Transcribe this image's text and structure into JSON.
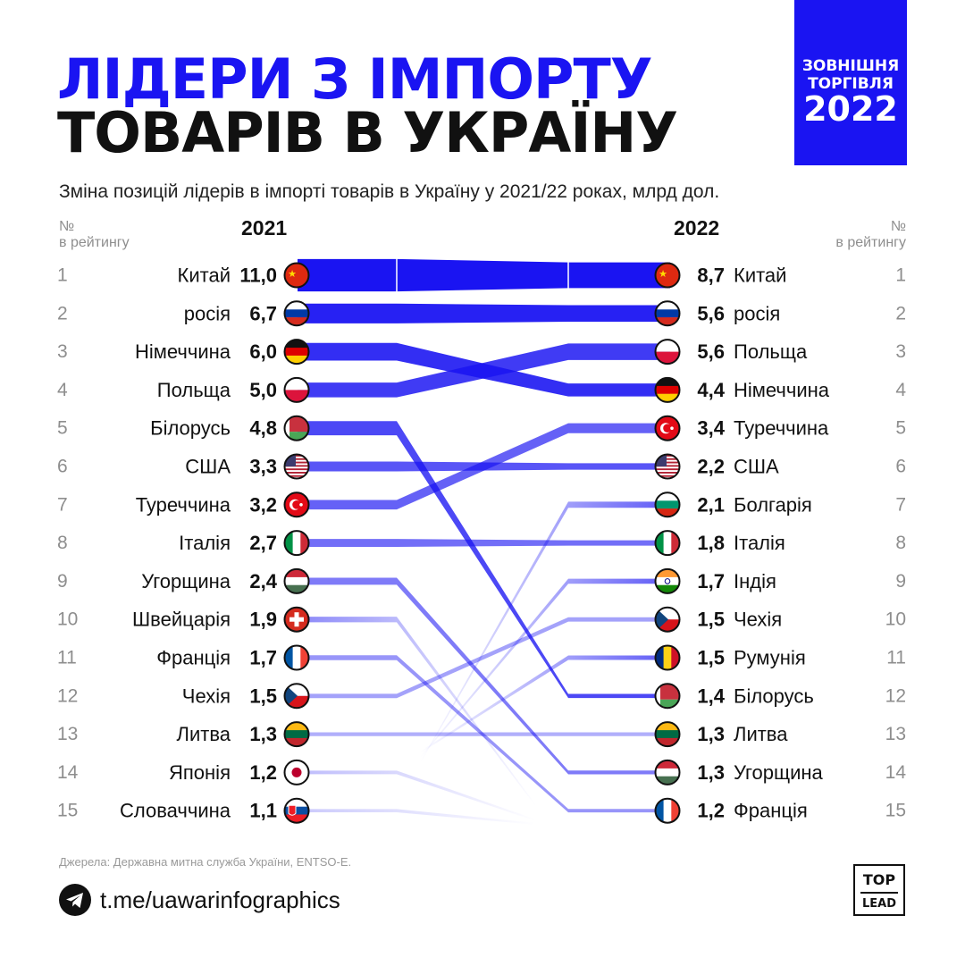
{
  "header": {
    "title_line1": "ЛІДЕРИ З ІМПОРТУ",
    "title_line2": "ТОВАРІВ В УКРАЇНУ",
    "subtitle": "Зміна позицій лідерів в імпорті товарів в Україну у 2021/22 роках, млрд дол."
  },
  "badge": {
    "line1": "ЗОВНІШНЯ",
    "line2": "ТОРГІВЛЯ",
    "line3": "2022"
  },
  "colors": {
    "accent": "#1a14f2",
    "text": "#111111",
    "muted": "#8e8e8e"
  },
  "chart_data": {
    "type": "slope",
    "left_rank_header": "№\nв рейтингу",
    "right_rank_header": "№\nв рейтингу",
    "years": [
      "2021",
      "2022"
    ],
    "ranking_2021": [
      {
        "rank": "1",
        "country": "Китай",
        "value": "11,0",
        "flag": "china-flag"
      },
      {
        "rank": "2",
        "country": "росія",
        "value": "6,7",
        "flag": "russia-flag"
      },
      {
        "rank": "3",
        "country": "Німеччина",
        "value": "6,0",
        "flag": "germany-flag"
      },
      {
        "rank": "4",
        "country": "Польща",
        "value": "5,0",
        "flag": "poland-flag"
      },
      {
        "rank": "5",
        "country": "Білорусь",
        "value": "4,8",
        "flag": "belarus-flag"
      },
      {
        "rank": "6",
        "country": "США",
        "value": "3,3",
        "flag": "usa-flag"
      },
      {
        "rank": "7",
        "country": "Туреччина",
        "value": "3,2",
        "flag": "turkey-flag"
      },
      {
        "rank": "8",
        "country": "Італія",
        "value": "2,7",
        "flag": "italy-flag"
      },
      {
        "rank": "9",
        "country": "Угорщина",
        "value": "2,4",
        "flag": "hungary-flag"
      },
      {
        "rank": "10",
        "country": "Швейцарія",
        "value": "1,9",
        "flag": "switzerland-flag"
      },
      {
        "rank": "11",
        "country": "Франція",
        "value": "1,7",
        "flag": "france-flag"
      },
      {
        "rank": "12",
        "country": "Чехія",
        "value": "1,5",
        "flag": "czechia-flag"
      },
      {
        "rank": "13",
        "country": "Литва",
        "value": "1,3",
        "flag": "lithuania-flag"
      },
      {
        "rank": "14",
        "country": "Японія",
        "value": "1,2",
        "flag": "japan-flag"
      },
      {
        "rank": "15",
        "country": "Словаччина",
        "value": "1,1",
        "flag": "slovakia-flag"
      }
    ],
    "ranking_2022": [
      {
        "rank": "1",
        "country": "Китай",
        "value": "8,7",
        "flag": "china-flag"
      },
      {
        "rank": "2",
        "country": "росія",
        "value": "5,6",
        "flag": "russia-flag"
      },
      {
        "rank": "3",
        "country": "Польща",
        "value": "5,6",
        "flag": "poland-flag"
      },
      {
        "rank": "4",
        "country": "Німеччина",
        "value": "4,4",
        "flag": "germany-flag"
      },
      {
        "rank": "5",
        "country": "Туреччина",
        "value": "3,4",
        "flag": "turkey-flag"
      },
      {
        "rank": "6",
        "country": "США",
        "value": "2,2",
        "flag": "usa-flag"
      },
      {
        "rank": "7",
        "country": "Болгарія",
        "value": "2,1",
        "flag": "bulgaria-flag"
      },
      {
        "rank": "8",
        "country": "Італія",
        "value": "1,8",
        "flag": "italy-flag"
      },
      {
        "rank": "9",
        "country": "Індія",
        "value": "1,7",
        "flag": "india-flag"
      },
      {
        "rank": "10",
        "country": "Чехія",
        "value": "1,5",
        "flag": "czechia-flag"
      },
      {
        "rank": "11",
        "country": "Румунія",
        "value": "1,5",
        "flag": "romania-flag"
      },
      {
        "rank": "12",
        "country": "Білорусь",
        "value": "1,4",
        "flag": "belarus-flag"
      },
      {
        "rank": "13",
        "country": "Литва",
        "value": "1,3",
        "flag": "lithuania-flag"
      },
      {
        "rank": "14",
        "country": "Угорщина",
        "value": "1,3",
        "flag": "hungary-flag"
      },
      {
        "rank": "15",
        "country": "Франція",
        "value": "1,2",
        "flag": "france-flag"
      }
    ]
  },
  "footer": {
    "source": "Джерела: Державна митна служба України, ENTSO-E.",
    "telegram_link": "t.me/uawarinfographics",
    "telegram_icon": "telegram-icon",
    "logo_top": "TOP",
    "logo_bottom": "LEAD"
  }
}
